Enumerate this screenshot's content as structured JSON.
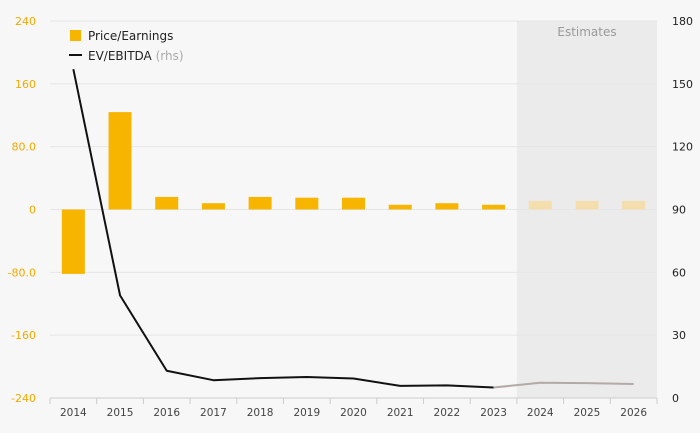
{
  "chart_data": {
    "type": "bar",
    "categories": [
      "2014",
      "2015",
      "2016",
      "2017",
      "2018",
      "2019",
      "2020",
      "2021",
      "2022",
      "2023",
      "2024",
      "2025",
      "2026"
    ],
    "series": [
      {
        "name": "Price/Earnings",
        "type": "bar",
        "axis": "left",
        "color": "#f7b500",
        "estimate_color": "#f5deae",
        "values": [
          -82,
          124,
          16,
          8,
          16,
          15,
          15,
          6,
          8,
          6,
          11,
          11,
          11
        ]
      },
      {
        "name": "EV/EBITDA",
        "name_suffix": "(rhs)",
        "type": "line",
        "axis": "right",
        "color": "#111111",
        "estimate_color": "#b3a9a9",
        "values": [
          157,
          49,
          13,
          8.5,
          9.5,
          10,
          9.3,
          5.8,
          6,
          5,
          7.3,
          7.1,
          6.7
        ]
      }
    ],
    "estimates_from": "2024",
    "estimates_label": "Estimates",
    "left_axis": {
      "ylim": [
        -240,
        240
      ],
      "ticks": [
        "240",
        "160",
        "80.0",
        "0",
        "-80.0",
        "-160",
        "-240"
      ],
      "tick_values": [
        240,
        160,
        80,
        0,
        -80,
        -160,
        -240
      ]
    },
    "right_axis": {
      "ylim": [
        0,
        180
      ],
      "ticks": [
        "180",
        "150",
        "120",
        "90",
        "60",
        "30",
        "0"
      ],
      "tick_values": [
        180,
        150,
        120,
        90,
        60,
        30,
        0
      ]
    },
    "grid": true,
    "legend_position": "top-left"
  }
}
